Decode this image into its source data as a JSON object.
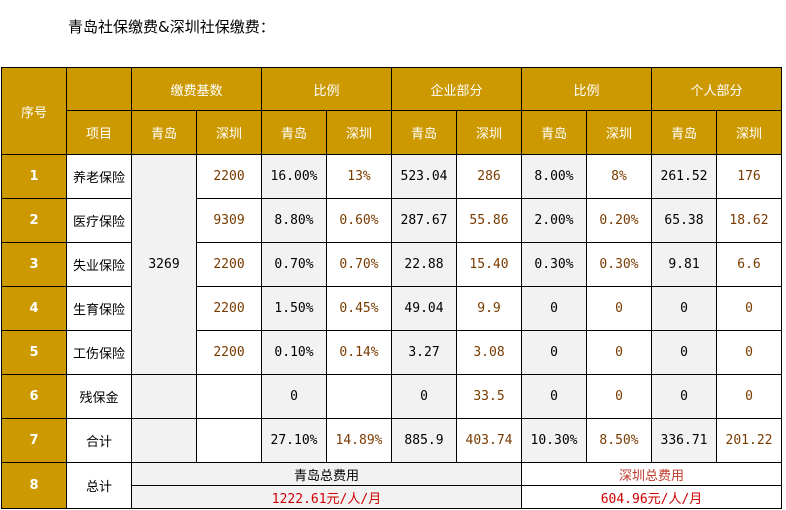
{
  "title": "青岛社保缴费&深圳社保缴费：",
  "header": {
    "seq": "序号",
    "item": "项目",
    "groups": [
      "缴费基数",
      "比例",
      "企业部分",
      "比例",
      "个人部分"
    ],
    "sub": [
      "青岛",
      "深圳",
      "青岛",
      "深圳",
      "青岛",
      "深圳",
      "青岛",
      "深圳",
      "青岛",
      "深圳"
    ]
  },
  "qingdao_base": "3269",
  "rows": [
    {
      "no": "1",
      "name": "养老保险",
      "sz_base": "2200",
      "qd_rate": "16.00%",
      "sz_rate": "13%",
      "qd_comp": "523.04",
      "sz_comp": "286",
      "qd_prate": "8.00%",
      "sz_prate": "8%",
      "qd_pers": "261.52",
      "sz_pers": "176"
    },
    {
      "no": "2",
      "name": "医疗保险",
      "sz_base": "9309",
      "qd_rate": "8.80%",
      "sz_rate": "0.60%",
      "qd_comp": "287.67",
      "sz_comp": "55.86",
      "qd_prate": "2.00%",
      "sz_prate": "0.20%",
      "qd_pers": "65.38",
      "sz_pers": "18.62"
    },
    {
      "no": "3",
      "name": "失业保险",
      "sz_base": "2200",
      "qd_rate": "0.70%",
      "sz_rate": "0.70%",
      "qd_comp": "22.88",
      "sz_comp": "15.40",
      "qd_prate": "0.30%",
      "sz_prate": "0.30%",
      "qd_pers": "9.81",
      "sz_pers": "6.6"
    },
    {
      "no": "4",
      "name": "生育保险",
      "sz_base": "2200",
      "qd_rate": "1.50%",
      "sz_rate": "0.45%",
      "qd_comp": "49.04",
      "sz_comp": "9.9",
      "qd_prate": "0",
      "sz_prate": "0",
      "qd_pers": "0",
      "sz_pers": "0"
    },
    {
      "no": "5",
      "name": "工伤保险",
      "sz_base": "2200",
      "qd_rate": "0.10%",
      "sz_rate": "0.14%",
      "qd_comp": "3.27",
      "sz_comp": "3.08",
      "qd_prate": "0",
      "sz_prate": "0",
      "qd_pers": "0",
      "sz_pers": "0"
    },
    {
      "no": "6",
      "name": "残保金",
      "sz_base": "",
      "qd_rate": "0",
      "sz_rate": "",
      "qd_comp": "0",
      "sz_comp": "33.5",
      "qd_prate": "0",
      "sz_prate": "0",
      "qd_pers": "0",
      "sz_pers": "0"
    },
    {
      "no": "7",
      "name": "合计",
      "sz_base": "",
      "qd_rate": "27.10%",
      "sz_rate": "14.89%",
      "qd_comp": "885.9",
      "sz_comp": "403.74",
      "qd_prate": "10.30%",
      "sz_prate": "8.50%",
      "qd_pers": "336.71",
      "sz_pers": "201.22"
    }
  ],
  "total": {
    "no": "8",
    "name": "总计",
    "qd_label": "青岛总费用",
    "qd_value": "1222.61元/人/月",
    "sz_label": "深圳总费用",
    "sz_value": "604.96元/人/月"
  }
}
